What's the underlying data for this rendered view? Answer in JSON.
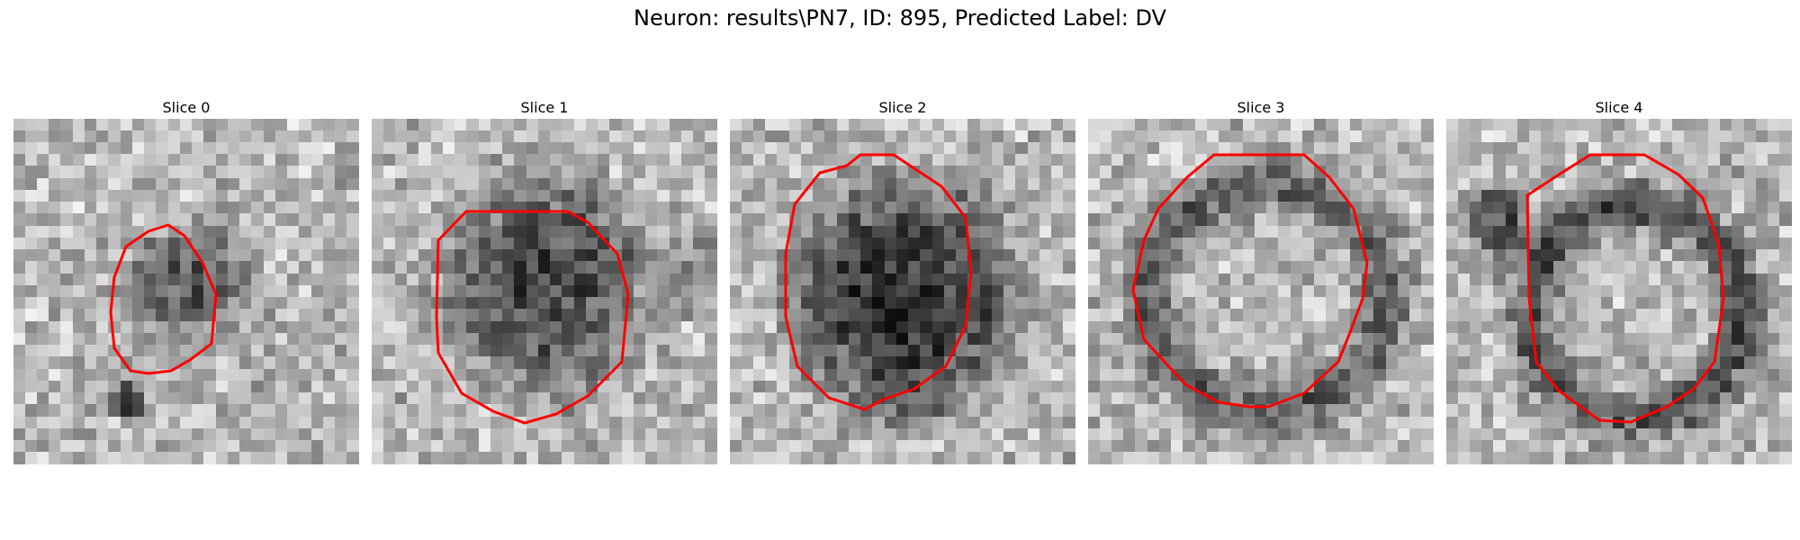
{
  "figure": {
    "title": "Neuron: results\\PN7, ID: 895, Predicted Label: DV"
  },
  "panels": [
    {
      "title": "Slice 0",
      "contour_color": "#ff0000"
    },
    {
      "title": "Slice 1",
      "contour_color": "#ff0000"
    },
    {
      "title": "Slice 2",
      "contour_color": "#ff0000"
    },
    {
      "title": "Slice 3",
      "contour_color": "#ff0000"
    },
    {
      "title": "Slice 4",
      "contour_color": "#ff0000"
    }
  ],
  "colormap": "gray",
  "contour_color": "#ff0000"
}
